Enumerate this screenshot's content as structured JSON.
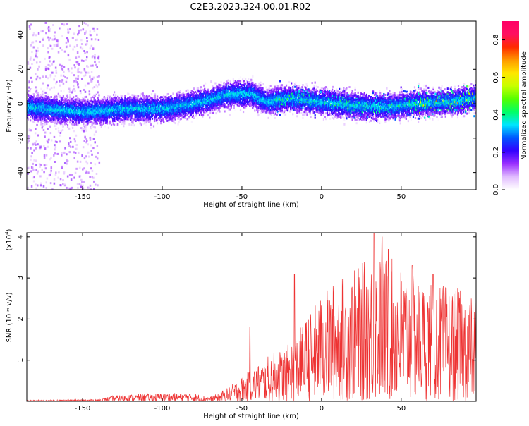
{
  "title": "C2E3.2023.324.00.01.R02",
  "chart_data": [
    {
      "type": "heatmap",
      "name": "spectrogram",
      "xlabel": "Height of straight line (km)",
      "ylabel": "Frequency (Hz)",
      "xlim": [
        -185,
        97
      ],
      "ylim": [
        -50,
        48
      ],
      "xticks": [
        -150,
        -100,
        -50,
        0,
        50
      ],
      "yticks": [
        -40,
        -20,
        0,
        20,
        40
      ],
      "band_center": [
        [
          -185,
          -2
        ],
        [
          -150,
          -5
        ],
        [
          -120,
          -3
        ],
        [
          -100,
          -3
        ],
        [
          -80,
          0
        ],
        [
          -60,
          5
        ],
        [
          -45,
          6
        ],
        [
          -35,
          1
        ],
        [
          -20,
          3
        ],
        [
          0,
          1
        ],
        [
          20,
          -1
        ],
        [
          40,
          -2
        ],
        [
          60,
          0
        ],
        [
          80,
          1
        ],
        [
          97,
          3
        ]
      ],
      "band_width_hz": 7,
      "scatter_xrange": [
        -185,
        -140
      ],
      "colorbar": {
        "label": "Normalized spectral amplitude",
        "range": [
          0.0,
          0.9
        ],
        "ticks": [
          "0.0",
          "0.2",
          "0.4",
          "0.6",
          "0.8"
        ],
        "colors": [
          "#ffffff",
          "#e1bcff",
          "#9b30ff",
          "#3300ff",
          "#0055ff",
          "#00e5ff",
          "#00ff66",
          "#55ff00",
          "#c8ff00",
          "#ffe600",
          "#ff9900",
          "#ff2a00",
          "#ff1060",
          "#ff0066"
        ]
      }
    },
    {
      "type": "line",
      "name": "snr",
      "xlabel": "Height of straight line (km)",
      "ylabel": "SNR (10 * v/v)",
      "yscale_label": "(x10",
      "yscale_exp": "4",
      "yscale_close": ")",
      "xlim": [
        -185,
        97
      ],
      "ylim": [
        0,
        4.1
      ],
      "xticks": [
        -150,
        -100,
        -50,
        0,
        50
      ],
      "yticks": [
        1,
        2,
        3,
        4
      ],
      "color": "#ee3333",
      "envelope": [
        [
          -185,
          0.03
        ],
        [
          -140,
          0.05
        ],
        [
          -130,
          0.15
        ],
        [
          -100,
          0.2
        ],
        [
          -80,
          0.2
        ],
        [
          -70,
          0.1
        ],
        [
          -60,
          0.3
        ],
        [
          -50,
          0.6
        ],
        [
          -40,
          0.9
        ],
        [
          -30,
          1.2
        ],
        [
          -20,
          1.4
        ],
        [
          -10,
          2.0
        ],
        [
          0,
          2.6
        ],
        [
          10,
          3.0
        ],
        [
          20,
          3.2
        ],
        [
          30,
          3.5
        ],
        [
          40,
          3.6
        ],
        [
          50,
          3.3
        ],
        [
          60,
          3.0
        ],
        [
          70,
          2.9
        ],
        [
          80,
          2.8
        ],
        [
          90,
          2.7
        ],
        [
          97,
          2.6
        ]
      ],
      "spikes": [
        [
          -17,
          3.1
        ],
        [
          -45,
          1.8
        ],
        [
          33,
          4.1
        ],
        [
          38,
          4.0
        ],
        [
          42,
          3.7
        ],
        [
          57,
          3.3
        ],
        [
          70,
          3.1
        ]
      ]
    }
  ]
}
